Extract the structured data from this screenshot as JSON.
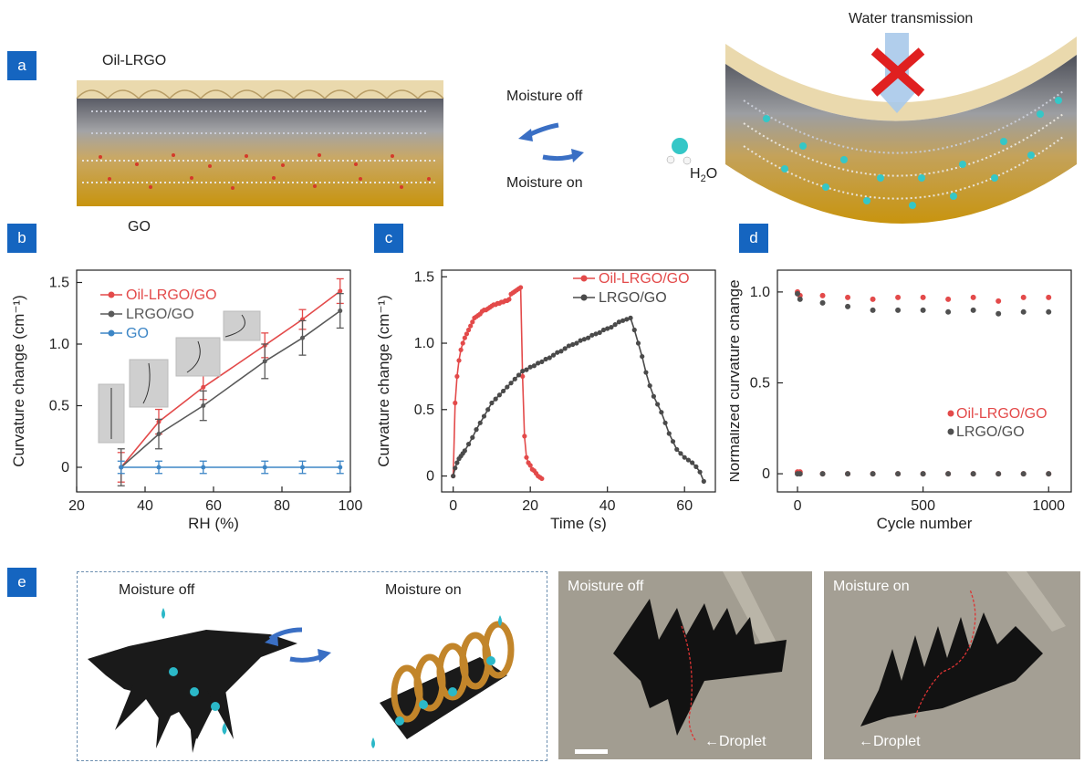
{
  "panel_labels": {
    "a": "a",
    "b": "b",
    "c": "c",
    "d": "d",
    "e": "e"
  },
  "panel_a": {
    "top_layer_label": "Oil-LRGO",
    "bottom_layer_label": "GO",
    "arrow_top_label": "Moisture off",
    "arrow_bottom_label": "Moisture on",
    "molecule_label_main": "H",
    "molecule_label_sub": "2",
    "molecule_label_end": "O",
    "transmission_label": "Water transmission",
    "colors": {
      "top_layer": "#e8d6a8",
      "graphene_layer": "#8a8a90",
      "go_layer": "#b8860b",
      "arrow": "#3a6fc4",
      "cross": "#e02020"
    }
  },
  "panel_e": {
    "schematic_off_label": "Moisture off",
    "schematic_on_label": "Moisture on",
    "photo_off_label": "Moisture off",
    "photo_on_label": "Moisture on",
    "droplet_label_1": "Droplet",
    "droplet_label_2": "Droplet"
  },
  "chart_data": [
    {
      "type": "line",
      "panel": "b",
      "xlabel": "RH (%)",
      "ylabel": "Curvature change (cm⁻¹)",
      "xlim": [
        20,
        100
      ],
      "ylim": [
        -0.2,
        1.6
      ],
      "xticks": [
        20,
        40,
        60,
        80,
        100
      ],
      "yticks": [
        0,
        0.5,
        1.0,
        1.5
      ],
      "ytick_labels": [
        "0",
        "0.5",
        "1.0",
        "1.5"
      ],
      "legend_position": "top-left",
      "series": [
        {
          "name": "Oil-LRGO/GO",
          "color": "#e34a4a",
          "x": [
            33,
            44,
            57,
            75,
            86,
            97
          ],
          "y": [
            0,
            0.37,
            0.65,
            0.99,
            1.2,
            1.43
          ],
          "err": [
            0.12,
            0.1,
            0.1,
            0.1,
            0.08,
            0.1
          ]
        },
        {
          "name": "LRGO/GO",
          "color": "#5a5a5a",
          "x": [
            33,
            44,
            57,
            75,
            86,
            97
          ],
          "y": [
            0,
            0.27,
            0.5,
            0.86,
            1.05,
            1.27
          ],
          "err": [
            0.15,
            0.12,
            0.12,
            0.14,
            0.14,
            0.14
          ]
        },
        {
          "name": "GO",
          "color": "#3d86c6",
          "x": [
            33,
            44,
            57,
            75,
            86,
            97
          ],
          "y": [
            0,
            0,
            0,
            0,
            0,
            0
          ],
          "err": [
            0.05,
            0.05,
            0.05,
            0.05,
            0.05,
            0.05
          ]
        }
      ]
    },
    {
      "type": "line",
      "panel": "c",
      "xlabel": "Time (s)",
      "ylabel": "Curvature change (cm⁻¹)",
      "xlim": [
        -3,
        68
      ],
      "ylim": [
        -0.12,
        1.55
      ],
      "xticks": [
        0,
        20,
        40,
        60
      ],
      "yticks": [
        0,
        0.5,
        1.0,
        1.5
      ],
      "ytick_labels": [
        "0",
        "0.5",
        "1.0",
        "1.5"
      ],
      "legend_position": "top-right",
      "series": [
        {
          "name": "Oil-LRGO/GO",
          "color": "#e34a4a",
          "x": [
            0,
            0.5,
            1,
            1.5,
            2,
            2.5,
            3,
            3.5,
            4,
            4.5,
            5,
            5.5,
            6,
            6.5,
            7,
            7.5,
            8,
            8.5,
            9,
            9.5,
            10,
            10.5,
            11,
            11.5,
            12,
            12.5,
            13,
            13.5,
            14,
            14.5,
            15,
            15.5,
            16,
            16.5,
            17,
            17.5,
            18,
            18.5,
            19,
            19.5,
            20,
            20.5,
            21,
            21.5,
            22,
            22.5,
            23
          ],
          "y": [
            0,
            0.55,
            0.75,
            0.87,
            0.95,
            1.0,
            1.04,
            1.07,
            1.1,
            1.13,
            1.16,
            1.19,
            1.2,
            1.21,
            1.22,
            1.24,
            1.25,
            1.25,
            1.26,
            1.27,
            1.28,
            1.29,
            1.29,
            1.3,
            1.3,
            1.31,
            1.31,
            1.32,
            1.32,
            1.33,
            1.37,
            1.38,
            1.39,
            1.4,
            1.41,
            1.42,
            0.75,
            0.3,
            0.14,
            0.1,
            0.08,
            0.05,
            0.04,
            0.02,
            0.0,
            -0.01,
            -0.02
          ]
        },
        {
          "name": "LRGO/GO",
          "color": "#4a4a4a",
          "x": [
            0,
            0.5,
            1,
            1.5,
            2,
            2.5,
            3,
            4,
            5,
            6,
            7,
            8,
            9,
            10,
            11,
            12,
            13,
            14,
            15,
            16,
            17,
            18,
            19,
            20,
            21,
            22,
            23,
            24,
            25,
            26,
            27,
            28,
            29,
            30,
            31,
            32,
            33,
            34,
            35,
            36,
            37,
            38,
            39,
            40,
            41,
            42,
            43,
            44,
            45,
            46,
            47,
            48,
            49,
            50,
            51,
            52,
            53,
            54,
            55,
            56,
            57,
            58,
            59,
            60,
            61,
            62,
            63,
            64,
            65
          ],
          "y": [
            0,
            0.06,
            0.1,
            0.13,
            0.15,
            0.17,
            0.19,
            0.24,
            0.29,
            0.35,
            0.4,
            0.45,
            0.5,
            0.55,
            0.58,
            0.61,
            0.64,
            0.67,
            0.7,
            0.73,
            0.76,
            0.79,
            0.8,
            0.82,
            0.83,
            0.85,
            0.86,
            0.88,
            0.89,
            0.91,
            0.93,
            0.94,
            0.96,
            0.98,
            0.99,
            1.0,
            1.02,
            1.03,
            1.04,
            1.06,
            1.07,
            1.08,
            1.1,
            1.11,
            1.12,
            1.14,
            1.16,
            1.17,
            1.18,
            1.19,
            1.1,
            1.0,
            0.9,
            0.78,
            0.68,
            0.6,
            0.54,
            0.48,
            0.4,
            0.32,
            0.26,
            0.2,
            0.17,
            0.14,
            0.12,
            0.1,
            0.07,
            0.03,
            -0.04
          ]
        }
      ]
    },
    {
      "type": "scatter",
      "panel": "d",
      "xlabel": "Cycle number",
      "ylabel": "Normalized curvature change",
      "xlim": [
        -80,
        1090
      ],
      "ylim": [
        -0.1,
        1.12
      ],
      "xticks": [
        0,
        500,
        1000
      ],
      "yticks": [
        0,
        0.5,
        1.0
      ],
      "ytick_labels": [
        "0",
        "0.5",
        "1.0"
      ],
      "legend_position": "center-right",
      "series": [
        {
          "name": "Oil-LRGO/GO",
          "color": "#e34a4a",
          "x": [
            0,
            10,
            100,
            200,
            300,
            400,
            500,
            600,
            700,
            800,
            900,
            1000
          ],
          "y": [
            1.0,
            0.98,
            0.98,
            0.97,
            0.96,
            0.97,
            0.97,
            0.96,
            0.97,
            0.95,
            0.97,
            0.97
          ]
        },
        {
          "name": "LRGO/GO",
          "color": "#505050",
          "x": [
            0,
            10,
            100,
            200,
            300,
            400,
            500,
            600,
            700,
            800,
            900,
            1000
          ],
          "y": [
            0.99,
            0.96,
            0.94,
            0.92,
            0.9,
            0.9,
            0.9,
            0.89,
            0.9,
            0.88,
            0.89,
            0.89
          ]
        },
        {
          "name": "Oil-LRGO/GO",
          "color": "#e34a4a",
          "x": [
            0,
            10,
            100,
            200,
            300,
            400,
            500,
            600,
            700,
            800,
            900,
            1000
          ],
          "y": [
            0.01,
            0.01,
            0.0,
            0.0,
            0.0,
            0.0,
            0.0,
            0.0,
            0.0,
            0.0,
            0.0,
            0.0
          ]
        },
        {
          "name": "LRGO/GO",
          "color": "#505050",
          "x": [
            0,
            10,
            100,
            200,
            300,
            400,
            500,
            600,
            700,
            800,
            900,
            1000
          ],
          "y": [
            0.0,
            0.0,
            0.0,
            0.0,
            0.0,
            0.0,
            0.0,
            0.0,
            0.0,
            0.0,
            0.0,
            0.0
          ]
        }
      ]
    }
  ]
}
